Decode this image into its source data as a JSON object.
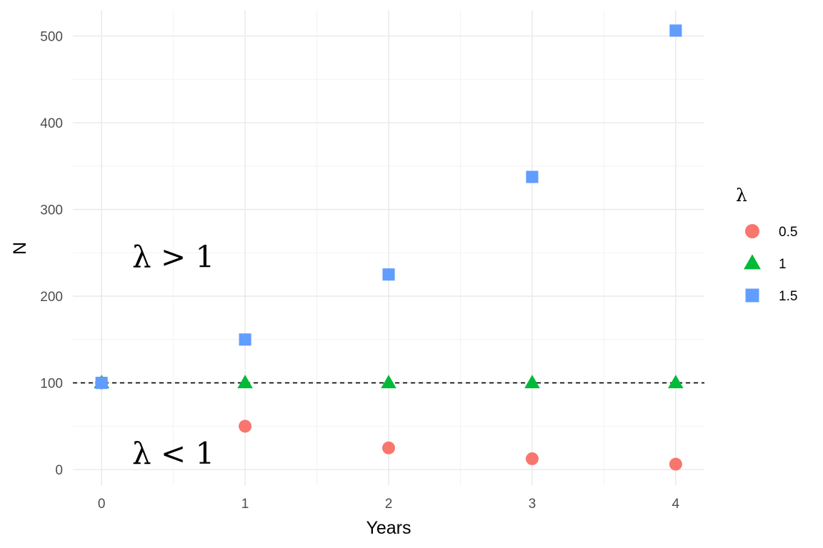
{
  "chart_data": {
    "type": "scatter",
    "xlabel": "Years",
    "ylabel": "N",
    "x": [
      0,
      1,
      2,
      3,
      4
    ],
    "xlim": [
      -0.2,
      4.2
    ],
    "ylim": [
      -18,
      530
    ],
    "xticks": [
      0,
      1,
      2,
      3,
      4
    ],
    "yticks": [
      0,
      100,
      200,
      300,
      400,
      500
    ],
    "grid": true,
    "legend": {
      "title": "λ",
      "position": "right"
    },
    "series": [
      {
        "name": "0.5",
        "shape": "circle",
        "color": "#F8766D",
        "values": [
          100,
          50,
          25,
          12.5,
          6.25
        ]
      },
      {
        "name": "1",
        "shape": "triangle",
        "color": "#00BA38",
        "values": [
          100,
          100,
          100,
          100,
          100
        ]
      },
      {
        "name": "1.5",
        "shape": "square",
        "color": "#619CFF",
        "values": [
          100,
          150,
          225,
          337.5,
          506.25
        ]
      }
    ],
    "reference_line": {
      "y": 100,
      "style": "dashed",
      "color": "#000000"
    },
    "annotations": [
      {
        "text": "λ > 1",
        "x": 0.5,
        "y": 245
      },
      {
        "text": "λ < 1",
        "x": 0.5,
        "y": 18
      }
    ]
  }
}
